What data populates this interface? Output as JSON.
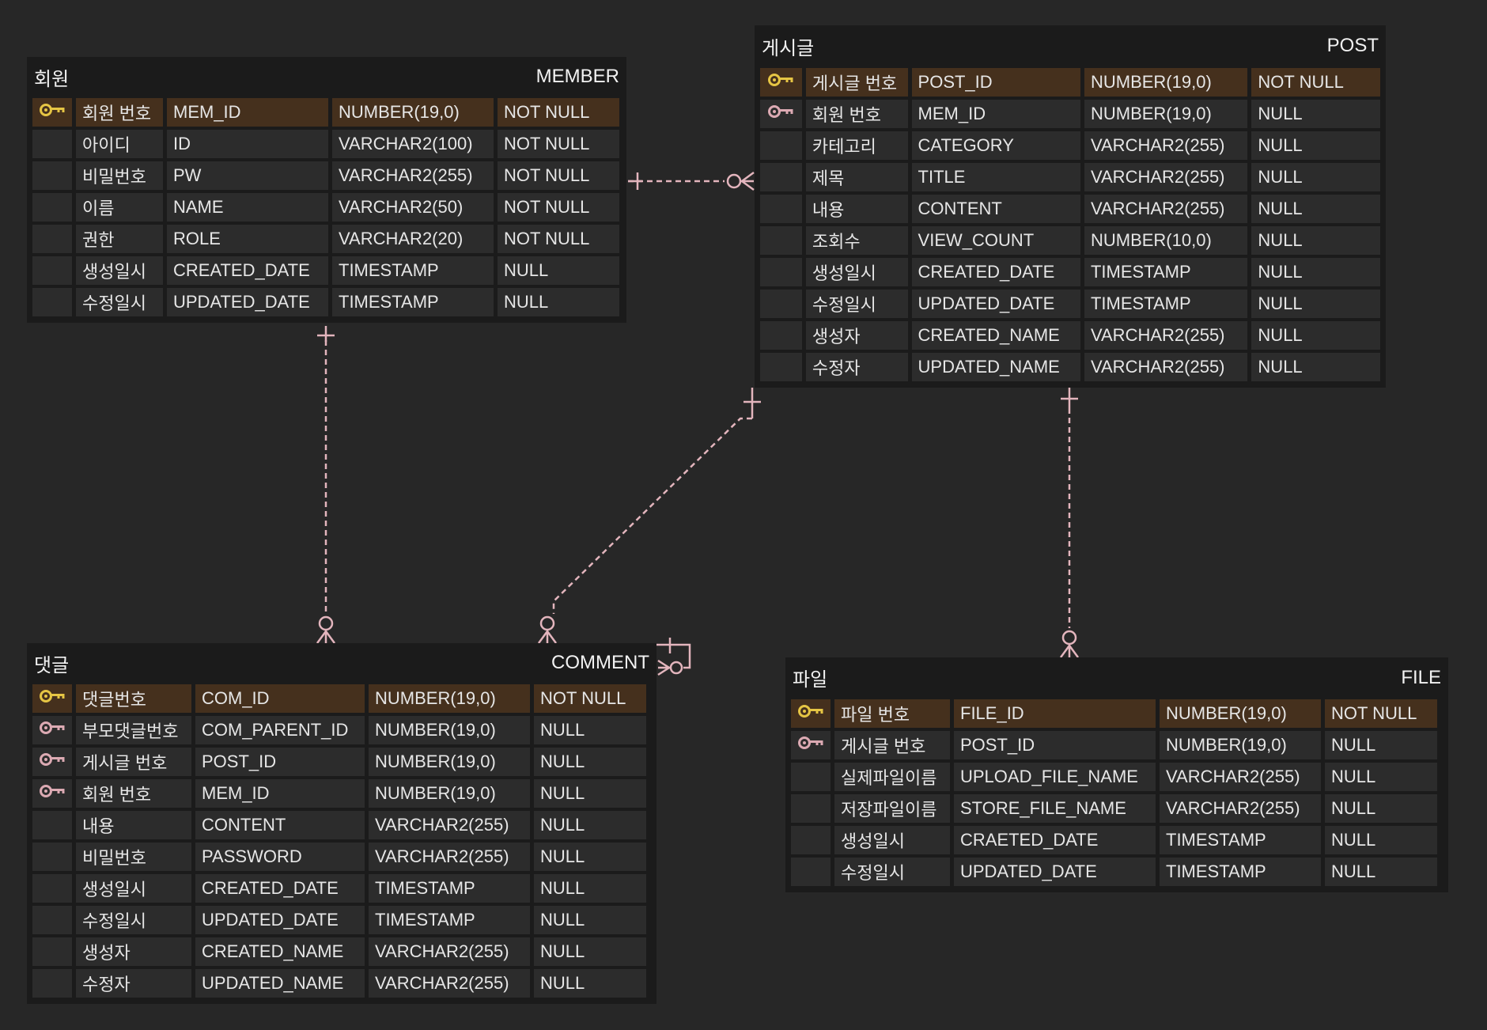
{
  "colors": {
    "background": "#272727",
    "table": "#1b1b1b",
    "cell": "#2c2c2c",
    "pk_row": "#45301d",
    "pk_key": "#e6c544",
    "fk_key": "#dcaab3",
    "relation_line": "#e3b5bd"
  },
  "tables": [
    {
      "id": "member",
      "title_kr": "회원",
      "title_en": "MEMBER",
      "rows": [
        {
          "key": "pk",
          "kor": "회원 번호",
          "name": "MEM_ID",
          "type": "NUMBER(19,0)",
          "null": "NOT NULL"
        },
        {
          "key": "",
          "kor": "아이디",
          "name": "ID",
          "type": "VARCHAR2(100)",
          "null": "NOT NULL"
        },
        {
          "key": "",
          "kor": "비밀번호",
          "name": "PW",
          "type": "VARCHAR2(255)",
          "null": "NOT NULL"
        },
        {
          "key": "",
          "kor": "이름",
          "name": "NAME",
          "type": "VARCHAR2(50)",
          "null": "NOT NULL"
        },
        {
          "key": "",
          "kor": "권한",
          "name": "ROLE",
          "type": "VARCHAR2(20)",
          "null": "NOT NULL"
        },
        {
          "key": "",
          "kor": "생성일시",
          "name": "CREATED_DATE",
          "type": "TIMESTAMP",
          "null": "NULL"
        },
        {
          "key": "",
          "kor": "수정일시",
          "name": "UPDATED_DATE",
          "type": "TIMESTAMP",
          "null": "NULL"
        }
      ]
    },
    {
      "id": "post",
      "title_kr": "게시글",
      "title_en": "POST",
      "rows": [
        {
          "key": "pk",
          "kor": "게시글 번호",
          "name": "POST_ID",
          "type": "NUMBER(19,0)",
          "null": "NOT NULL"
        },
        {
          "key": "fk",
          "kor": "회원 번호",
          "name": "MEM_ID",
          "type": "NUMBER(19,0)",
          "null": "NULL"
        },
        {
          "key": "",
          "kor": "카테고리",
          "name": "CATEGORY",
          "type": "VARCHAR2(255)",
          "null": "NULL"
        },
        {
          "key": "",
          "kor": "제목",
          "name": "TITLE",
          "type": "VARCHAR2(255)",
          "null": "NULL"
        },
        {
          "key": "",
          "kor": "내용",
          "name": "CONTENT",
          "type": "VARCHAR2(255)",
          "null": "NULL"
        },
        {
          "key": "",
          "kor": "조회수",
          "name": "VIEW_COUNT",
          "type": "NUMBER(10,0)",
          "null": "NULL"
        },
        {
          "key": "",
          "kor": "생성일시",
          "name": "CREATED_DATE",
          "type": "TIMESTAMP",
          "null": "NULL"
        },
        {
          "key": "",
          "kor": "수정일시",
          "name": "UPDATED_DATE",
          "type": "TIMESTAMP",
          "null": "NULL"
        },
        {
          "key": "",
          "kor": "생성자",
          "name": "CREATED_NAME",
          "type": "VARCHAR2(255)",
          "null": "NULL"
        },
        {
          "key": "",
          "kor": "수정자",
          "name": "UPDATED_NAME",
          "type": "VARCHAR2(255)",
          "null": "NULL"
        }
      ]
    },
    {
      "id": "comment",
      "title_kr": "댓글",
      "title_en": "COMMENT",
      "rows": [
        {
          "key": "pk",
          "kor": "댓글번호",
          "name": "COM_ID",
          "type": "NUMBER(19,0)",
          "null": "NOT NULL"
        },
        {
          "key": "fk",
          "kor": "부모댓글번호",
          "name": "COM_PARENT_ID",
          "type": "NUMBER(19,0)",
          "null": "NULL"
        },
        {
          "key": "fk",
          "kor": "게시글 번호",
          "name": "POST_ID",
          "type": "NUMBER(19,0)",
          "null": "NULL"
        },
        {
          "key": "fk",
          "kor": "회원 번호",
          "name": "MEM_ID",
          "type": "NUMBER(19,0)",
          "null": "NULL"
        },
        {
          "key": "",
          "kor": "내용",
          "name": "CONTENT",
          "type": "VARCHAR2(255)",
          "null": "NULL"
        },
        {
          "key": "",
          "kor": "비밀번호",
          "name": "PASSWORD",
          "type": "VARCHAR2(255)",
          "null": "NULL"
        },
        {
          "key": "",
          "kor": "생성일시",
          "name": "CREATED_DATE",
          "type": "TIMESTAMP",
          "null": "NULL"
        },
        {
          "key": "",
          "kor": "수정일시",
          "name": "UPDATED_DATE",
          "type": "TIMESTAMP",
          "null": "NULL"
        },
        {
          "key": "",
          "kor": "생성자",
          "name": "CREATED_NAME",
          "type": "VARCHAR2(255)",
          "null": "NULL"
        },
        {
          "key": "",
          "kor": "수정자",
          "name": "UPDATED_NAME",
          "type": "VARCHAR2(255)",
          "null": "NULL"
        }
      ]
    },
    {
      "id": "file",
      "title_kr": "파일",
      "title_en": "FILE",
      "rows": [
        {
          "key": "pk",
          "kor": "파일 번호",
          "name": "FILE_ID",
          "type": "NUMBER(19,0)",
          "null": "NOT NULL"
        },
        {
          "key": "fk",
          "kor": "게시글 번호",
          "name": "POST_ID",
          "type": "NUMBER(19,0)",
          "null": "NULL"
        },
        {
          "key": "",
          "kor": "실제파일이름",
          "name": "UPLOAD_FILE_NAME",
          "type": "VARCHAR2(255)",
          "null": "NULL"
        },
        {
          "key": "",
          "kor": "저장파일이름",
          "name": "STORE_FILE_NAME",
          "type": "VARCHAR2(255)",
          "null": "NULL"
        },
        {
          "key": "",
          "kor": "생성일시",
          "name": "CRAETED_DATE",
          "type": "TIMESTAMP",
          "null": "NULL"
        },
        {
          "key": "",
          "kor": "수정일시",
          "name": "UPDATED_DATE",
          "type": "TIMESTAMP",
          "null": "NULL"
        }
      ]
    }
  ],
  "relations": [
    {
      "from": "member",
      "to": "post",
      "from_card": "one",
      "to_card": "zero-or-many"
    },
    {
      "from": "member",
      "to": "comment",
      "from_card": "one",
      "to_card": "zero-or-many"
    },
    {
      "from": "post",
      "to": "comment",
      "from_card": "one",
      "to_card": "zero-or-many"
    },
    {
      "from": "post",
      "to": "file",
      "from_card": "one",
      "to_card": "zero-or-many"
    },
    {
      "from": "comment",
      "to": "comment",
      "from_card": "one",
      "to_card": "zero-or-many"
    }
  ]
}
